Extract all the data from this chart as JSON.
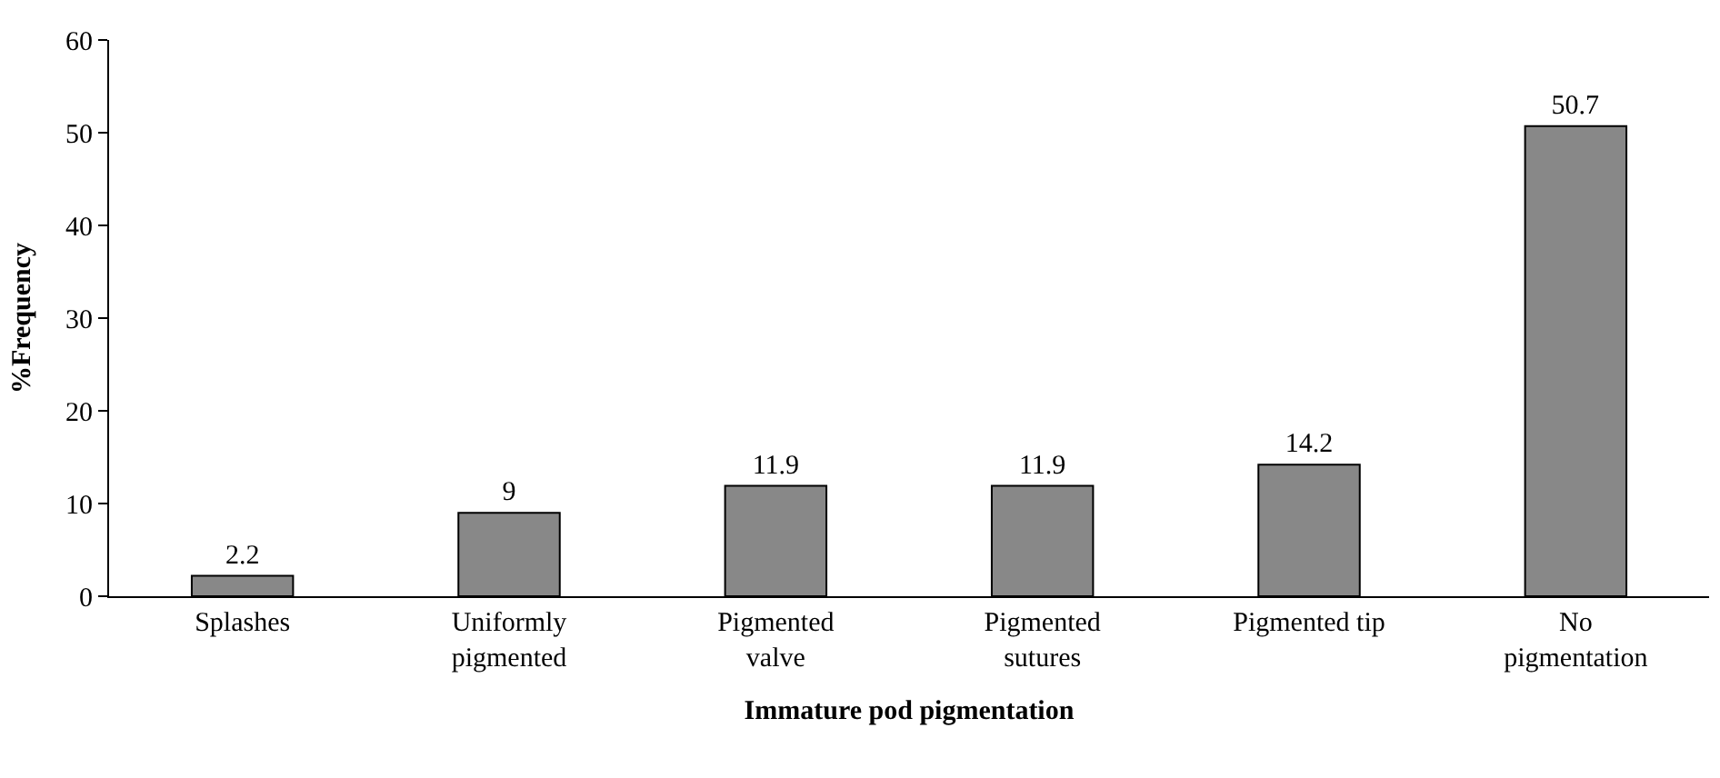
{
  "chart_data": {
    "type": "bar",
    "xlabel": "Immature pod pigmentation",
    "ylabel": "%Frequency",
    "categories": [
      "Splashes",
      "Uniformly\npigmented",
      "Pigmented\nvalve",
      "Pigmented\nsutures",
      "Pigmented tip",
      "No\npigmentation"
    ],
    "values": [
      2.2,
      9,
      11.9,
      11.9,
      14.2,
      50.7
    ],
    "color": "#888888",
    "ylim": [
      0,
      60
    ],
    "yticks": [
      0,
      10,
      20,
      30,
      40,
      50,
      60
    ],
    "data_labels": true
  }
}
